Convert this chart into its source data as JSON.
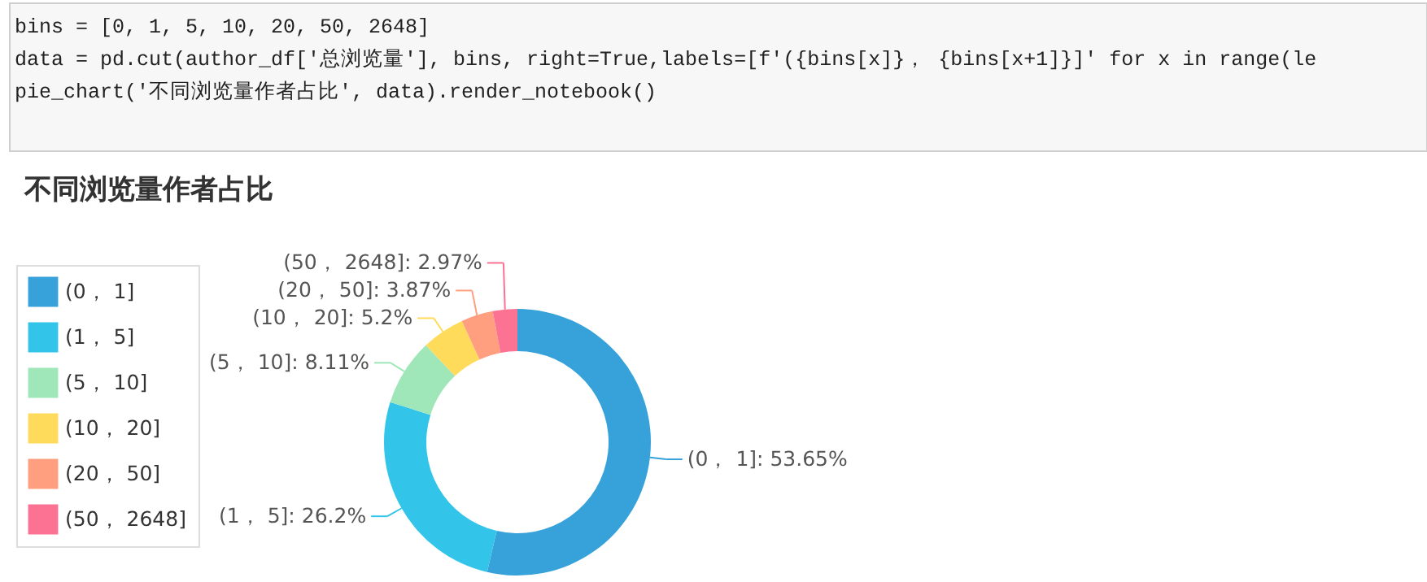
{
  "chart_data": {
    "type": "donut",
    "title": "不同浏览量作者占比",
    "categories": [
      "(0， 1]",
      "(1， 5]",
      "(5， 10]",
      "(10， 20]",
      "(20， 50]",
      "(50， 2648]"
    ],
    "values": [
      53.65,
      26.2,
      8.11,
      5.2,
      3.87,
      2.97
    ],
    "colors": [
      "#37a2da",
      "#32c5e9",
      "#9fe6b8",
      "#ffdb5c",
      "#ff9f7f",
      "#fb7293"
    ],
    "value_labels": [
      "(0， 1]: 53.65%",
      "(1， 5]: 26.2%",
      "(5， 10]: 8.11%",
      "(10， 20]: 5.2%",
      "(20， 50]: 3.87%",
      "(50， 2648]: 2.97%"
    ],
    "legend": "left",
    "annotations": [
      "bins = [0, 1, 5, 10, 20, 50, 2648]",
      "data = pd.cut(author_df['总浏览量'], bins, right=True,labels=[f'({bins[x]}， {bins[x+1]}]' for x in range(le",
      "pie_chart('不同浏览量作者占比', data).render_notebook()"
    ]
  }
}
